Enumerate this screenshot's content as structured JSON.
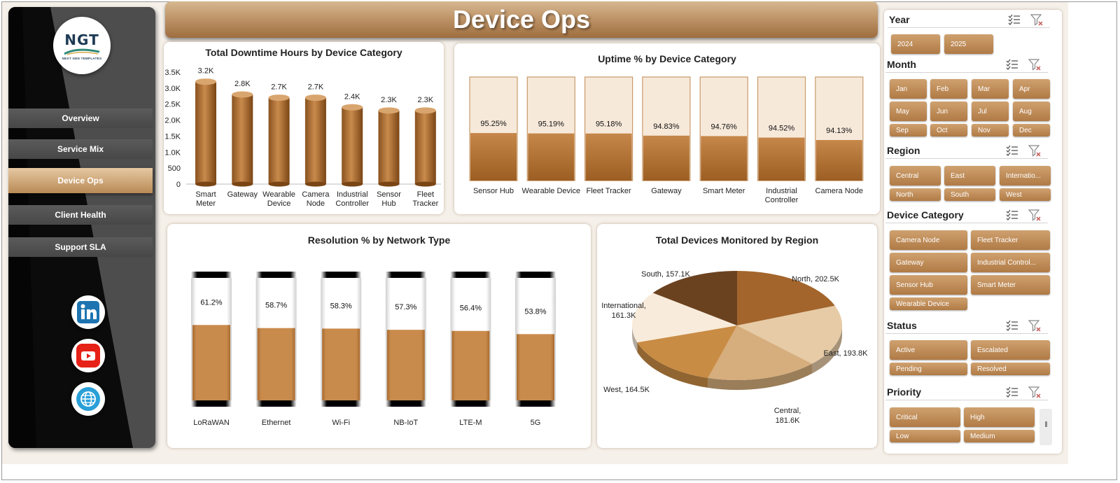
{
  "page": {
    "title": "Device Ops"
  },
  "brand": {
    "logo_text": "NGT",
    "logo_tagline": "NEXT GEN TEMPLATES",
    "colors": {
      "accent": "#b07a45",
      "accent_light": "#e6c8a2",
      "sidebar_dark": "#0a0a0a"
    }
  },
  "sidebar": {
    "items": [
      {
        "label": "Overview",
        "active": false
      },
      {
        "label": "Service Mix",
        "active": false
      },
      {
        "label": "Device Ops",
        "active": true
      },
      {
        "label": "Client Health",
        "active": false
      },
      {
        "label": "Support SLA",
        "active": false
      }
    ],
    "social": [
      {
        "icon": "linkedin-icon"
      },
      {
        "icon": "youtube-icon"
      },
      {
        "icon": "globe-icon"
      }
    ]
  },
  "charts": {
    "downtime": {
      "title": "Total Downtime Hours by Device Category"
    },
    "uptime": {
      "title": "Uptime % by Device Category"
    },
    "resolution": {
      "title": "Resolution % by Network Type"
    },
    "devices": {
      "title": "Total Devices Monitored by Region"
    }
  },
  "chart_data": [
    {
      "type": "bar",
      "title": "Total Downtime Hours by Device Category",
      "categories": [
        "Smart Meter",
        "Gateway",
        "Wearable Device",
        "Camera Node",
        "Industrial Controller",
        "Sensor Hub",
        "Fleet Tracker"
      ],
      "values": [
        3200,
        2800,
        2700,
        2700,
        2400,
        2300,
        2300
      ],
      "data_labels": [
        "3.2K",
        "2.8K",
        "2.7K",
        "2.7K",
        "2.4K",
        "2.3K",
        "2.3K"
      ],
      "ylim": [
        0,
        3500
      ],
      "yticks": [
        "3.5K",
        "3.0K",
        "2.5K",
        "2.0K",
        "1.5K",
        "1.0K",
        "500",
        "0"
      ]
    },
    {
      "type": "bar",
      "title": "Uptime % by Device Category",
      "categories": [
        "Sensor Hub",
        "Wearable Device",
        "Fleet Tracker",
        "Gateway",
        "Smart Meter",
        "Industrial Controller",
        "Camera Node"
      ],
      "values": [
        95.25,
        95.19,
        95.18,
        94.83,
        94.76,
        94.52,
        94.13
      ],
      "data_labels": [
        "95.25%",
        "95.19%",
        "95.18%",
        "94.83%",
        "94.76%",
        "94.52%",
        "94.13%"
      ],
      "ylim": [
        0,
        100
      ]
    },
    {
      "type": "bar",
      "title": "Resolution % by Network Type",
      "categories": [
        "LoRaWAN",
        "Ethernet",
        "Wi-Fi",
        "NB-IoT",
        "LTE-M",
        "5G"
      ],
      "values": [
        61.2,
        58.7,
        58.3,
        57.3,
        56.4,
        53.8
      ],
      "data_labels": [
        "61.2%",
        "58.7%",
        "58.3%",
        "57.3%",
        "56.4%",
        "53.8%"
      ],
      "ylim": [
        0,
        100
      ]
    },
    {
      "type": "pie",
      "title": "Total Devices Monitored by Region",
      "categories": [
        "North",
        "East",
        "Central",
        "West",
        "International",
        "South"
      ],
      "values": [
        202.5,
        193.8,
        181.6,
        164.5,
        161.3,
        157.1
      ],
      "data_labels": [
        "North, 202.5K",
        "East, 193.8K",
        "Central, 181.6K",
        "West, 164.5K",
        "International, 161.3K",
        "South, 157.1K"
      ],
      "colors": [
        "#a3652c",
        "#e6cba6",
        "#d6ad7c",
        "#c98c44",
        "#f8ebdb",
        "#6b4220"
      ]
    }
  ],
  "slicers": [
    {
      "title": "Year",
      "items": [
        "2024",
        "2025"
      ]
    },
    {
      "title": "Month",
      "items": [
        "Jan",
        "Feb",
        "Mar",
        "Apr",
        "May",
        "Jun",
        "Jul",
        "Aug",
        "Sep",
        "Oct",
        "Nov",
        "Dec"
      ]
    },
    {
      "title": "Region",
      "items": [
        "Central",
        "East",
        "Internatio...",
        "North",
        "South",
        "West"
      ]
    },
    {
      "title": "Device Category",
      "items": [
        "Camera Node",
        "Fleet Tracker",
        "Gateway",
        "Industrial Control...",
        "Sensor Hub",
        "Smart Meter",
        "Wearable Device"
      ]
    },
    {
      "title": "Status",
      "items": [
        "Active",
        "Escalated",
        "Pending",
        "Resolved"
      ]
    },
    {
      "title": "Priority",
      "items": [
        "Critical",
        "High",
        "Low",
        "Medium"
      ]
    }
  ]
}
